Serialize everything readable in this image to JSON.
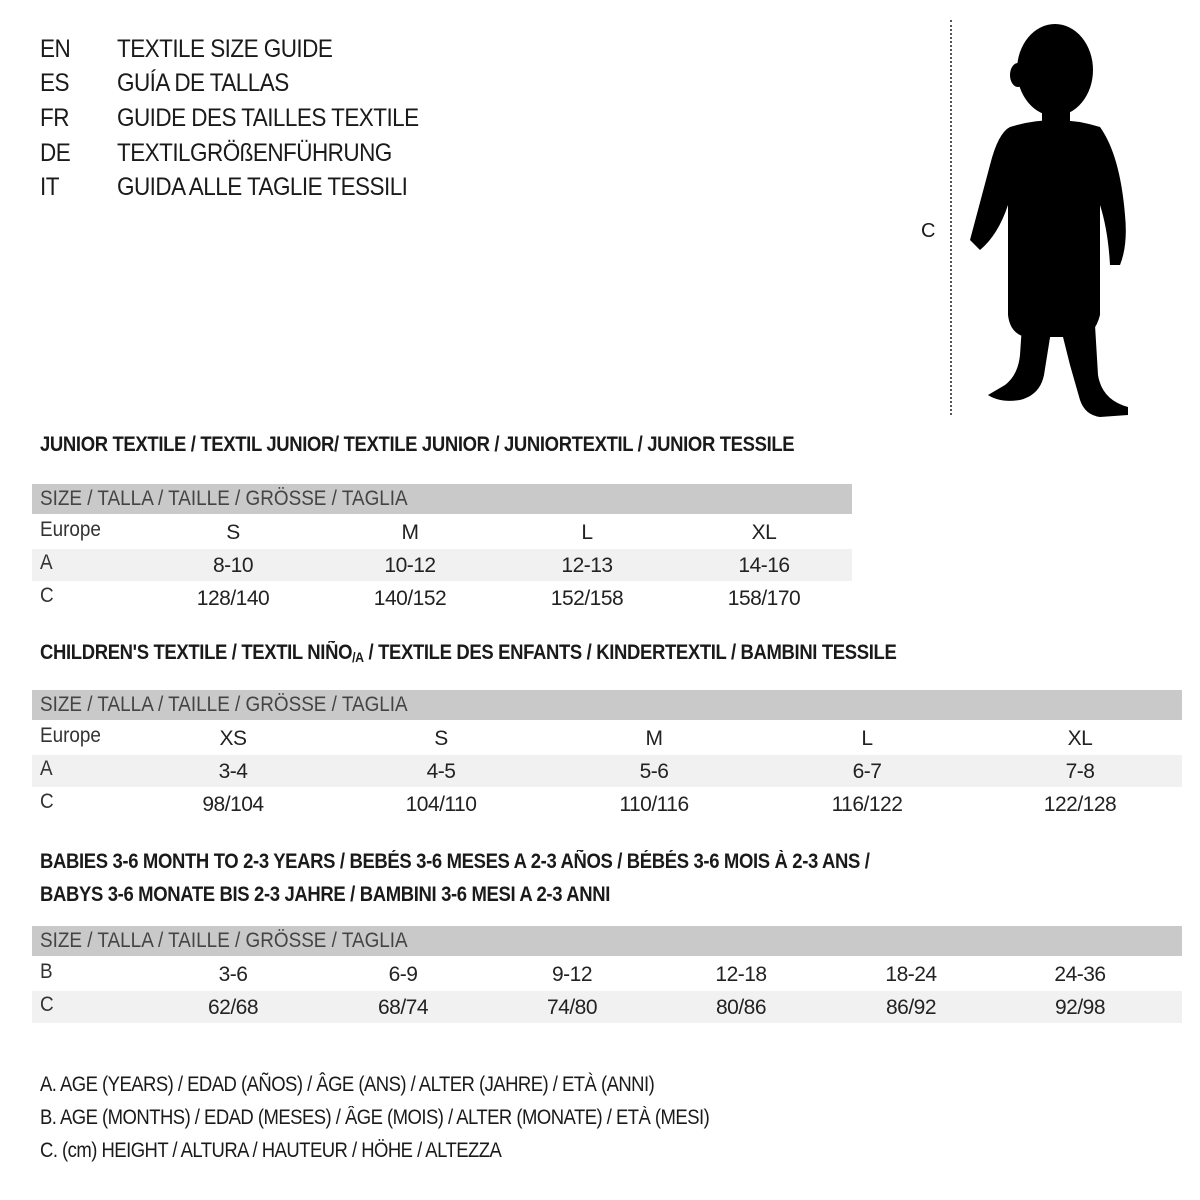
{
  "titles": [
    {
      "code": "EN",
      "text": "TEXTILE SIZE GUIDE"
    },
    {
      "code": "ES",
      "text": "GUÍA DE TALLAS"
    },
    {
      "code": "FR",
      "text": "GUIDE DES TAILLES TEXTILE"
    },
    {
      "code": "DE",
      "text": "TEXTILGRÖßENFÜHRUNG"
    },
    {
      "code": "IT",
      "text": "GUIDA ALLE TAGLIE TESSILI"
    }
  ],
  "figure": {
    "measure_label": "C",
    "icon": "child-silhouette"
  },
  "colors": {
    "header_bg": "#c9c9c9",
    "row_shade": "#f1f1f1",
    "text": "#1a1a1a"
  },
  "junior": {
    "heading": "JUNIOR TEXTILE / TEXTIL JUNIOR/ TEXTILE JUNIOR / JUNIORTEXTIL / JUNIOR TESSILE",
    "header": "SIZE / TALLA / TAILLE / GRÖSSE / TAGLIA",
    "rows": [
      {
        "label": "Europe",
        "values": [
          "S",
          "M",
          "L",
          "XL"
        ]
      },
      {
        "label": "A",
        "values": [
          "8-10",
          "10-12",
          "12-13",
          "14-16"
        ]
      },
      {
        "label": "C",
        "values": [
          "128/140",
          "140/152",
          "152/158",
          "158/170"
        ]
      }
    ]
  },
  "children": {
    "heading_pre": "CHILDREN'S TEXTILE / TEXTIL NIÑO",
    "heading_sub": "/A",
    "heading_post": " / TEXTILE DES ENFANTS / KINDERTEXTIL / BAMBINI TESSILE",
    "header": "SIZE / TALLA / TAILLE / GRÖSSE / TAGLIA",
    "rows": [
      {
        "label": "Europe",
        "values": [
          "XS",
          "S",
          "M",
          "L",
          "XL"
        ]
      },
      {
        "label": "A",
        "values": [
          "3-4",
          "4-5",
          "5-6",
          "6-7",
          "7-8"
        ]
      },
      {
        "label": "C",
        "values": [
          "98/104",
          "104/110",
          "110/116",
          "116/122",
          "122/128"
        ]
      }
    ]
  },
  "babies": {
    "heading_line1": "BABIES 3-6 MONTH TO 2-3 YEARS / BEBÉS 3-6 MESES A 2-3 AÑOS / BÉBÉS 3-6 MOIS À 2-3 ANS /",
    "heading_line2": "BABYS 3-6 MONATE BIS 2-3 JAHRE / BAMBINI 3-6 MESI A 2-3 ANNI",
    "header": "SIZE / TALLA / TAILLE / GRÖSSE / TAGLIA",
    "rows": [
      {
        "label": "B",
        "values": [
          "3-6",
          "6-9",
          "9-12",
          "12-18",
          "18-24",
          "24-36"
        ]
      },
      {
        "label": "C",
        "values": [
          "62/68",
          "68/74",
          "74/80",
          "80/86",
          "86/92",
          "92/98"
        ]
      }
    ]
  },
  "legend": [
    "A. AGE (YEARS) / EDAD (AÑOS) / ÂGE (ANS) / ALTER (JAHRE) / ETÀ (ANNI)",
    "B. AGE (MONTHS) / EDAD (MESES) / ÂGE (MOIS) / ALTER (MONATE) / ETÀ (MESI)",
    "C. (cm) HEIGHT / ALTURA / HAUTEUR / HÖHE / ALTEZZA"
  ]
}
